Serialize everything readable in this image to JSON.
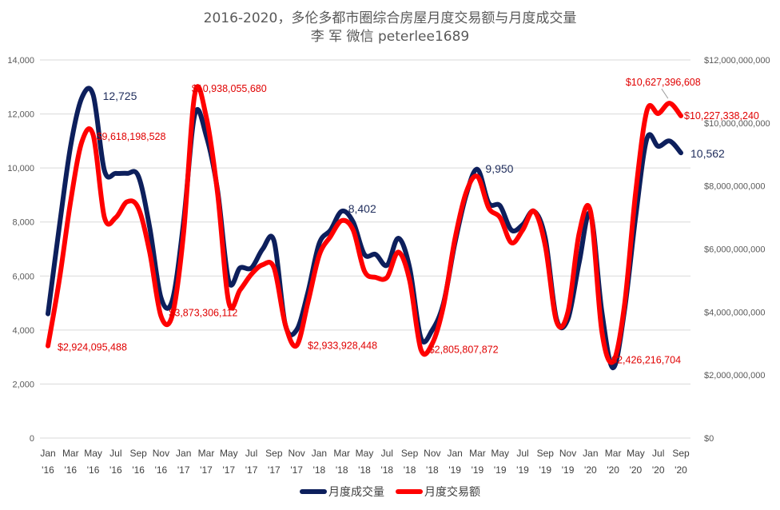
{
  "chart_data": {
    "type": "line",
    "title": "2016-2020，多伦多都市圈综合房屋月度交易额与月度成交量",
    "subtitle": "李 军  微信 peterlee1689",
    "left_axis": {
      "ylim": [
        0,
        14000
      ],
      "ticks": [
        "0",
        "2,000",
        "4,000",
        "6,000",
        "8,000",
        "10,000",
        "12,000",
        "14,000"
      ]
    },
    "right_axis": {
      "ylim": [
        0,
        12000000000
      ],
      "ticks": [
        "$0",
        "$2,000,000,000",
        "$4,000,000,000",
        "$6,000,000,000",
        "$8,000,000,000",
        "$10,000,000,000",
        "$12,000,000,000"
      ]
    },
    "x_tick_labels": [
      [
        "Jan",
        "'16"
      ],
      [
        "Mar",
        "'16"
      ],
      [
        "May",
        "'16"
      ],
      [
        "Jul",
        "'16"
      ],
      [
        "Sep",
        "'16"
      ],
      [
        "Nov",
        "'16"
      ],
      [
        "Jan",
        "'17"
      ],
      [
        "Mar",
        "'17"
      ],
      [
        "May",
        "'17"
      ],
      [
        "Jul",
        "'17"
      ],
      [
        "Sep",
        "'17"
      ],
      [
        "Nov",
        "'17"
      ],
      [
        "Jan",
        "'18"
      ],
      [
        "Mar",
        "'18"
      ],
      [
        "May",
        "'18"
      ],
      [
        "Jul",
        "'18"
      ],
      [
        "Sep",
        "'18"
      ],
      [
        "Nov",
        "'18"
      ],
      [
        "Jan",
        "'19"
      ],
      [
        "Mar",
        "'19"
      ],
      [
        "May",
        "'19"
      ],
      [
        "Jul",
        "'19"
      ],
      [
        "Sep",
        "'19"
      ],
      [
        "Nov",
        "'19"
      ],
      [
        "Jan",
        "'20"
      ],
      [
        "Mar",
        "'20"
      ],
      [
        "May",
        "'20"
      ],
      [
        "Jul",
        "'20"
      ],
      [
        "Sep",
        "'20"
      ]
    ],
    "series": [
      {
        "name": "月度成交量",
        "axis": "left",
        "color": "#0d1f5c",
        "values": [
          4600,
          7800,
          10800,
          12600,
          12700,
          9900,
          9800,
          9800,
          9700,
          7800,
          5200,
          5100,
          8000,
          12000,
          11200,
          9200,
          5800,
          6300,
          6300,
          7000,
          7300,
          4200,
          4000,
          5400,
          7200,
          7700,
          8400,
          8000,
          6800,
          6800,
          6400,
          7400,
          6300,
          3700,
          4000,
          5000,
          7200,
          9000,
          9950,
          8700,
          8600,
          7700,
          7900,
          8400,
          7400,
          4400,
          4400,
          6500,
          8300,
          4700,
          2600,
          4700,
          8200,
          11100,
          10800,
          11000,
          10562
        ]
      },
      {
        "name": "月度交易额",
        "axis": "right",
        "color": "#ff0000",
        "values": [
          2924095488,
          5000000000,
          7500000000,
          9400000000,
          9618198528,
          7000000000,
          7000000000,
          7500000000,
          7300000000,
          5900000000,
          3873306112,
          3900000000,
          6500000000,
          10938055680,
          10200000000,
          7800000000,
          4300000000,
          4700000000,
          5200000000,
          5500000000,
          5400000000,
          3600000000,
          2933928448,
          4300000000,
          5800000000,
          6400000000,
          6900000000,
          6600000000,
          5300000000,
          5100000000,
          5100000000,
          5900000000,
          5000000000,
          2805807872,
          3000000000,
          4200000000,
          6300000000,
          7800000000,
          8300000000,
          7300000000,
          7000000000,
          6200000000,
          6600000000,
          7200000000,
          6100000000,
          3700000000,
          4000000000,
          6500000000,
          7200000000,
          3400000000,
          2426216704,
          4200000000,
          7800000000,
          10400000000,
          10300000000,
          10627396608,
          10227338240
        ]
      }
    ],
    "annotations": [
      {
        "series": 0,
        "index": 4,
        "text": "12,725"
      },
      {
        "series": 0,
        "index": 38,
        "text": "9,950"
      },
      {
        "series": 0,
        "index": 26,
        "text": "8,402"
      },
      {
        "series": 0,
        "index": 56,
        "text": "10,562"
      },
      {
        "series": 1,
        "index": 0,
        "text": "$2,924,095,488"
      },
      {
        "series": 1,
        "index": 4,
        "text": "$9,618,198,528"
      },
      {
        "series": 1,
        "index": 10,
        "text": "$3,873,306,112"
      },
      {
        "series": 1,
        "index": 13,
        "text": "$10,938,055,680"
      },
      {
        "series": 1,
        "index": 22,
        "text": "$2,933,928,448"
      },
      {
        "series": 1,
        "index": 33,
        "text": "$2,805,807,872"
      },
      {
        "series": 1,
        "index": 50,
        "text": "$2,426,216,704"
      },
      {
        "series": 1,
        "index": 55,
        "text": "$10,627,396,608"
      },
      {
        "series": 1,
        "index": 56,
        "text": "$10,227,338,240"
      }
    ],
    "legend": {
      "position": "bottom",
      "entries": [
        "月度成交量",
        "月度交易额"
      ]
    }
  }
}
